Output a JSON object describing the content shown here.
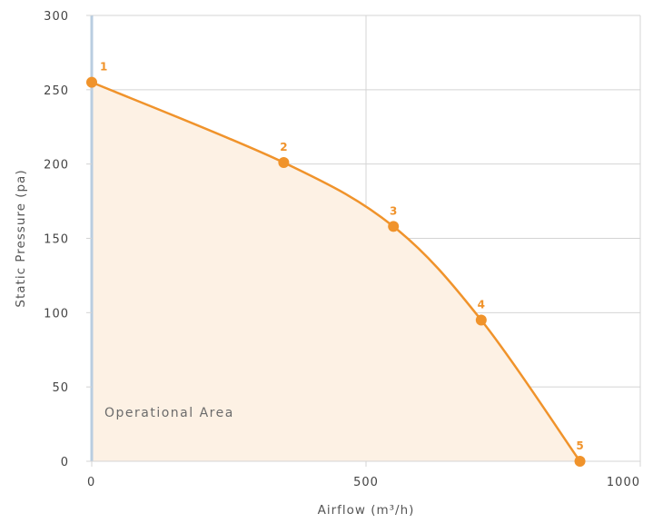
{
  "chart_data": {
    "type": "area",
    "title": "",
    "xlabel": "Airflow (m³/h)",
    "ylabel": "Static Pressure (pa)",
    "xlim": [
      0,
      1000
    ],
    "ylim": [
      0,
      300
    ],
    "x_ticks": [
      0,
      500,
      1000
    ],
    "y_ticks": [
      0,
      50,
      100,
      150,
      200,
      250,
      300
    ],
    "grid": true,
    "legend": "none",
    "series": [
      {
        "points": [
          {
            "label": "1",
            "x": 0,
            "y": 255
          },
          {
            "label": "2",
            "x": 350,
            "y": 201
          },
          {
            "label": "3",
            "x": 550,
            "y": 158
          },
          {
            "label": "4",
            "x": 710,
            "y": 95
          },
          {
            "label": "5",
            "x": 890,
            "y": 0
          }
        ]
      }
    ],
    "annotation": "Operational Area",
    "colors": {
      "line": "#f0932b",
      "fill": "#fdf1e4",
      "axis": "#b9cde0",
      "grid": "#d4d4d4"
    }
  }
}
